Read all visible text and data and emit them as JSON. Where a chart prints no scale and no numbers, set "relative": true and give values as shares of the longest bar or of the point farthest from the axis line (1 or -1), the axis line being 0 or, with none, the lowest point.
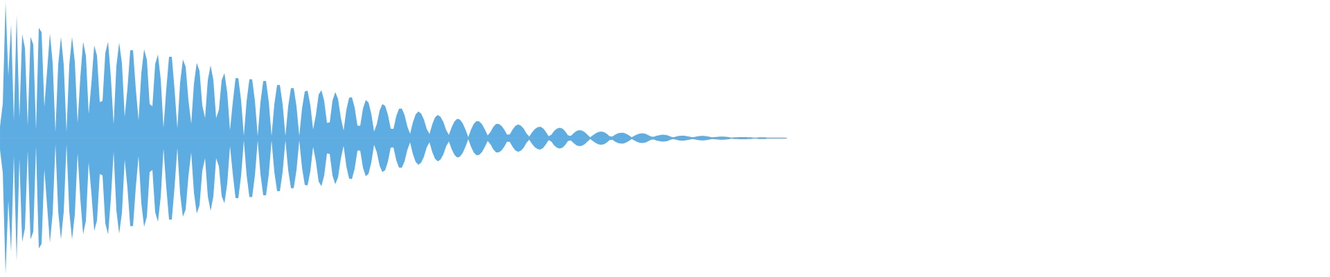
{
  "chart_data": {
    "type": "area",
    "relative": true,
    "categories": [
      null,
      null,
      null,
      null,
      null,
      null,
      null,
      null,
      null,
      null,
      null,
      null,
      null,
      null,
      null,
      null,
      null,
      null,
      null,
      null,
      null,
      null,
      null,
      null,
      null,
      null,
      null,
      null,
      null,
      null,
      null,
      null,
      null,
      null,
      null,
      null,
      null,
      null,
      null,
      null,
      null,
      null,
      null,
      null,
      null,
      null,
      null,
      null,
      null,
      null,
      null,
      null,
      null,
      null,
      null,
      null,
      null,
      null,
      null,
      null,
      null,
      null,
      null,
      null,
      null,
      null,
      null,
      null,
      null,
      null,
      null,
      null,
      null,
      null,
      null,
      null,
      null,
      null,
      null,
      null,
      null,
      null,
      null,
      null,
      null,
      null,
      null,
      null,
      null,
      null,
      null,
      null,
      null,
      null,
      null,
      null,
      null,
      null,
      null,
      null,
      null,
      null,
      null,
      null,
      null,
      null,
      null,
      null,
      null,
      null,
      null,
      null,
      null,
      null,
      null,
      null,
      null,
      null,
      null,
      null,
      null,
      null,
      null,
      null,
      null,
      null,
      null,
      null,
      null,
      null,
      null,
      null,
      null,
      null,
      null,
      null,
      null,
      null,
      null,
      null,
      null,
      null,
      null,
      null,
      null,
      null,
      null,
      null,
      null,
      null,
      null,
      null,
      null,
      null,
      null,
      null,
      null,
      null,
      null,
      null,
      null,
      null,
      null,
      null,
      null,
      null,
      null,
      null,
      null,
      null,
      null,
      null,
      null,
      null,
      null,
      null,
      null,
      null,
      null,
      null,
      null,
      null,
      null,
      null,
      null,
      null,
      null,
      null,
      null,
      null,
      null,
      null,
      null,
      null,
      null,
      null,
      null,
      null,
      null,
      null,
      null,
      null,
      null,
      null,
      null,
      null,
      null,
      null,
      null,
      null,
      null,
      null,
      null,
      null,
      null,
      null,
      null,
      null,
      null,
      null,
      null,
      null,
      null,
      null,
      null,
      null,
      null,
      null,
      null,
      null,
      null,
      null,
      null,
      null,
      null,
      null,
      null,
      null,
      null,
      null,
      null,
      null,
      null,
      null,
      null,
      null,
      null,
      null,
      null,
      null,
      null,
      null,
      null,
      null,
      null,
      null,
      null,
      null,
      null,
      null,
      null,
      null,
      null,
      null,
      null,
      null,
      null,
      null,
      null,
      null,
      null,
      null,
      null,
      null,
      null,
      null,
      null,
      null,
      null,
      null,
      null,
      null,
      null,
      null,
      null
    ],
    "series": [
      {
        "color": "#5dade2",
        "values": [
          0.086,
          0.254,
          1,
          0.458,
          0.84,
          0.128,
          0.906,
          0.152,
          0.764,
          0.662,
          0.092,
          0.744,
          0.688,
          0.062,
          0.81,
          0.778,
          0.23,
          0.498,
          0.768,
          0.554,
          0.046,
          0.54,
          0.744,
          0.54,
          0.046,
          0.54,
          0.744,
          0.56,
          0.112,
          0.452,
          0.708,
          0.606,
          0.178,
          0.408,
          0.682,
          0.606,
          0.264,
          0.274,
          0.626,
          0.708,
          0.448,
          0.102,
          0.53,
          0.702,
          0.55,
          0.158,
          0.366,
          0.646,
          0.646,
          0.362,
          0.132,
          0.478,
          0.652,
          0.576,
          0.25,
          0.234,
          0.544,
          0.614,
          0.432,
          0.078,
          0.358,
          0.598,
          0.598,
          0.356,
          0.072,
          0.408,
          0.578,
          0.524,
          0.28,
          0.106,
          0.402,
          0.554,
          0.494,
          0.24,
          0.148,
          0.428,
          0.534,
          0.428,
          0.148,
          0.208,
          0.426,
          0.478,
          0.334,
          0.058,
          0.262,
          0.44,
          0.442,
          0.278,
          0.016,
          0.272,
          0.432,
          0.432,
          0.272,
          0.016,
          0.266,
          0.42,
          0.42,
          0.266,
          0.016,
          0.248,
          0.39,
          0.39,
          0.248,
          0.016,
          0.234,
          0.368,
          0.368,
          0.234,
          0.016,
          0.218,
          0.344,
          0.348,
          0.242,
          0.064,
          0.17,
          0.32,
          0.352,
          0.274,
          0.112,
          0.116,
          0.276,
          0.338,
          0.288,
          0.15,
          0.056,
          0.208,
          0.298,
          0.3,
          0.224,
          0.092,
          0.092,
          0.218,
          0.28,
          0.262,
          0.178,
          0.048,
          0.104,
          0.202,
          0.25,
          0.236,
          0.172,
          0.07,
          0.068,
          0.162,
          0.216,
          0.218,
          0.17,
          0.086,
          0.032,
          0.116,
          0.174,
          0.196,
          0.18,
          0.136,
          0.068,
          0.03,
          0.102,
          0.152,
          0.17,
          0.156,
          0.12,
          0.06,
          0.024,
          0.08,
          0.122,
          0.142,
          0.136,
          0.108,
          0.062,
          0.008,
          0.064,
          0.106,
          0.126,
          0.122,
          0.1,
          0.064,
          0.02,
          0.044,
          0.082,
          0.104,
          0.104,
          0.09,
          0.062,
          0.026,
          0.028,
          0.064,
          0.09,
          0.1,
          0.092,
          0.07,
          0.034,
          0.012,
          0.042,
          0.066,
          0.08,
          0.084,
          0.072,
          0.046,
          0.014,
          0.026,
          0.054,
          0.07,
          0.076,
          0.07,
          0.05,
          0.02,
          0.016,
          0.036,
          0.052,
          0.058,
          0.056,
          0.044,
          0.026,
          0.006,
          0.022,
          0.036,
          0.046,
          0.048,
          0.044,
          0.032,
          0.014,
          0.012,
          0.026,
          0.036,
          0.04,
          0.04,
          0.032,
          0.02,
          0.006,
          0.018,
          0.028,
          0.034,
          0.036,
          0.032,
          0.022,
          0.012,
          0.01,
          0.018,
          0.022,
          0.026,
          0.024,
          0.02,
          0.012,
          0.006,
          0.012,
          0.016,
          0.018,
          0.018,
          0.014,
          0.01,
          0.006,
          0.01,
          0.014,
          0.016,
          0.016,
          0.014,
          0.01,
          0.006,
          0.008,
          0.01,
          0.012,
          0.012,
          0.01,
          0.008,
          0.004,
          0.006,
          0.006,
          0.008,
          0.008,
          0.008,
          0.006,
          0.006,
          0.004,
          0.004,
          0.006,
          0.006,
          0.006,
          0.004,
          0.004,
          0.004,
          0.004,
          0.004,
          0.004,
          0.004,
          0.002
        ]
      },
      {
        "color": "#5dade2",
        "values": [
          -0.086,
          -0.254,
          -1,
          -0.458,
          -0.84,
          -0.128,
          -0.906,
          -0.152,
          -0.764,
          -0.662,
          -0.092,
          -0.744,
          -0.688,
          -0.062,
          -0.81,
          -0.778,
          -0.23,
          -0.498,
          -0.768,
          -0.554,
          -0.046,
          -0.54,
          -0.744,
          -0.54,
          -0.046,
          -0.54,
          -0.744,
          -0.56,
          -0.112,
          -0.452,
          -0.708,
          -0.606,
          -0.178,
          -0.408,
          -0.682,
          -0.606,
          -0.264,
          -0.274,
          -0.626,
          -0.708,
          -0.448,
          -0.102,
          -0.53,
          -0.702,
          -0.55,
          -0.158,
          -0.366,
          -0.646,
          -0.646,
          -0.362,
          -0.132,
          -0.478,
          -0.652,
          -0.576,
          -0.25,
          -0.234,
          -0.544,
          -0.614,
          -0.432,
          -0.078,
          -0.358,
          -0.598,
          -0.598,
          -0.356,
          -0.072,
          -0.408,
          -0.578,
          -0.524,
          -0.28,
          -0.106,
          -0.402,
          -0.554,
          -0.494,
          -0.24,
          -0.148,
          -0.428,
          -0.534,
          -0.428,
          -0.148,
          -0.208,
          -0.426,
          -0.478,
          -0.334,
          -0.058,
          -0.262,
          -0.44,
          -0.442,
          -0.278,
          -0.016,
          -0.272,
          -0.432,
          -0.432,
          -0.272,
          -0.016,
          -0.266,
          -0.42,
          -0.42,
          -0.266,
          -0.016,
          -0.248,
          -0.39,
          -0.39,
          -0.248,
          -0.016,
          -0.234,
          -0.368,
          -0.368,
          -0.234,
          -0.016,
          -0.218,
          -0.344,
          -0.348,
          -0.242,
          -0.064,
          -0.17,
          -0.32,
          -0.352,
          -0.274,
          -0.112,
          -0.116,
          -0.276,
          -0.338,
          -0.288,
          -0.15,
          -0.056,
          -0.208,
          -0.298,
          -0.3,
          -0.224,
          -0.092,
          -0.092,
          -0.218,
          -0.28,
          -0.262,
          -0.178,
          -0.048,
          -0.104,
          -0.202,
          -0.25,
          -0.236,
          -0.172,
          -0.07,
          -0.068,
          -0.162,
          -0.216,
          -0.218,
          -0.17,
          -0.086,
          -0.032,
          -0.116,
          -0.174,
          -0.196,
          -0.18,
          -0.136,
          -0.068,
          -0.03,
          -0.102,
          -0.152,
          -0.17,
          -0.156,
          -0.12,
          -0.06,
          -0.024,
          -0.08,
          -0.122,
          -0.142,
          -0.136,
          -0.108,
          -0.062,
          -0.008,
          -0.064,
          -0.106,
          -0.126,
          -0.122,
          -0.1,
          -0.064,
          -0.02,
          -0.044,
          -0.082,
          -0.104,
          -0.104,
          -0.09,
          -0.062,
          -0.026,
          -0.028,
          -0.064,
          -0.09,
          -0.1,
          -0.092,
          -0.07,
          -0.034,
          -0.012,
          -0.042,
          -0.066,
          -0.08,
          -0.084,
          -0.072,
          -0.046,
          -0.014,
          -0.026,
          -0.054,
          -0.07,
          -0.076,
          -0.07,
          -0.05,
          -0.02,
          -0.016,
          -0.036,
          -0.052,
          -0.058,
          -0.056,
          -0.044,
          -0.026,
          -0.006,
          -0.022,
          -0.036,
          -0.046,
          -0.048,
          -0.044,
          -0.032,
          -0.014,
          -0.012,
          -0.026,
          -0.036,
          -0.04,
          -0.04,
          -0.032,
          -0.02,
          -0.006,
          -0.018,
          -0.028,
          -0.034,
          -0.036,
          -0.032,
          -0.022,
          -0.012,
          -0.01,
          -0.018,
          -0.022,
          -0.026,
          -0.024,
          -0.02,
          -0.012,
          -0.006,
          -0.012,
          -0.016,
          -0.018,
          -0.018,
          -0.014,
          -0.01,
          -0.006,
          -0.01,
          -0.014,
          -0.016,
          -0.016,
          -0.014,
          -0.01,
          -0.006,
          -0.008,
          -0.01,
          -0.012,
          -0.012,
          -0.01,
          -0.008,
          -0.004,
          -0.006,
          -0.006,
          -0.008,
          -0.008,
          -0.008,
          -0.006,
          -0.006,
          -0.004,
          -0.004,
          -0.006,
          -0.006,
          -0.006,
          -0.004,
          -0.004,
          -0.004,
          -0.004,
          -0.004,
          -0.004,
          -0.004,
          -0.002
        ]
      }
    ]
  }
}
